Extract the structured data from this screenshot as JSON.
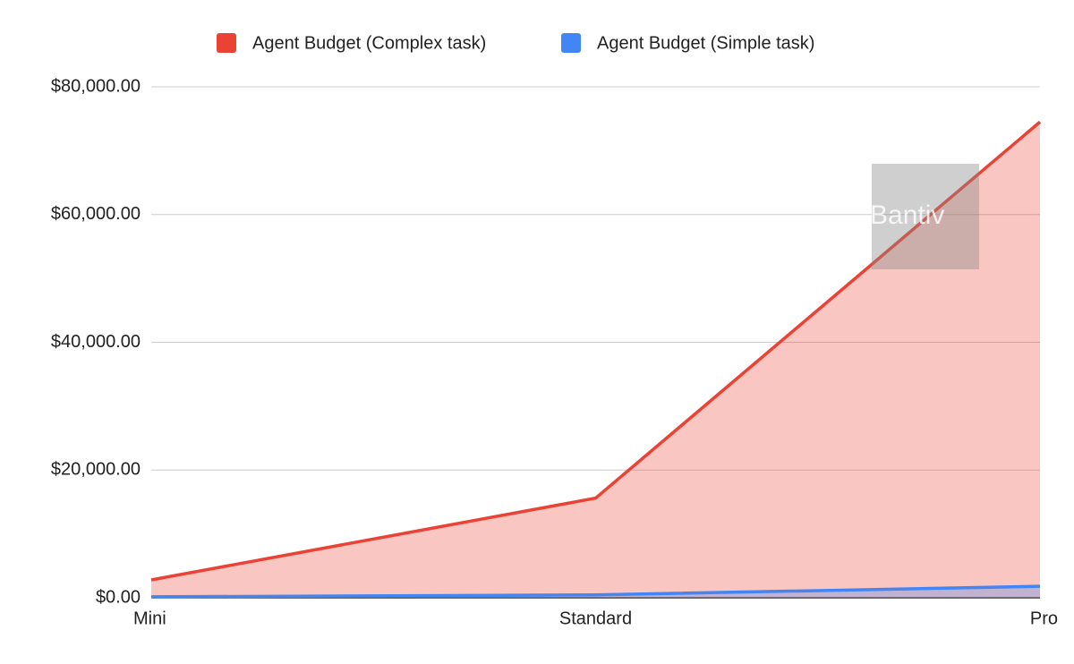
{
  "chart_data": {
    "type": "area",
    "categories": [
      "Mini",
      "Standard",
      "Pro"
    ],
    "series": [
      {
        "name": "Agent Budget (Complex task)",
        "color": "#ea4335",
        "values": [
          2800,
          15600,
          74500
        ]
      },
      {
        "name": "Agent Budget (Simple task)",
        "color": "#4285f4",
        "values": [
          150,
          450,
          1800
        ]
      }
    ],
    "ylim": [
      0,
      80000
    ],
    "yticks": [
      {
        "value": 0,
        "label": "$0.00"
      },
      {
        "value": 20000,
        "label": "$20,000.00"
      },
      {
        "value": 40000,
        "label": "$40,000.00"
      },
      {
        "value": 60000,
        "label": "$60,000.00"
      },
      {
        "value": 80000,
        "label": "$80,000.00"
      }
    ],
    "grid": true,
    "legend": "top",
    "watermark": "Bantiv"
  }
}
